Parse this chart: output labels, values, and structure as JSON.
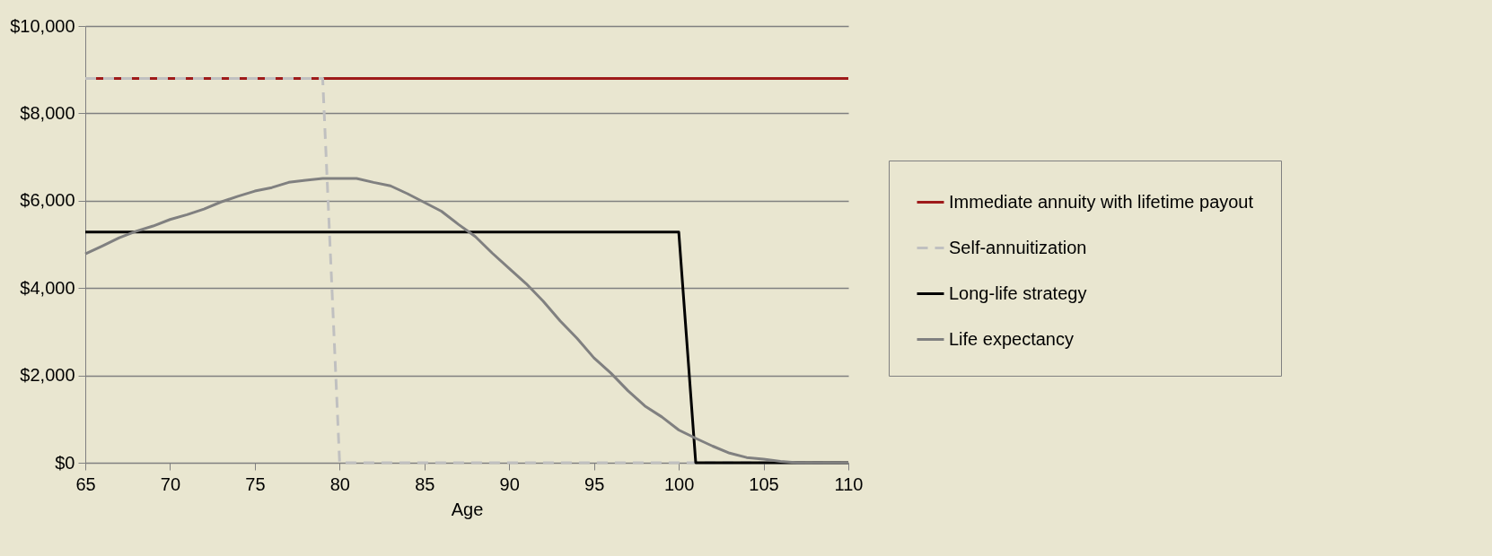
{
  "chart_data": {
    "type": "line",
    "xlabel": "Age",
    "xlim": [
      65,
      110
    ],
    "xticks": [
      65,
      70,
      75,
      80,
      85,
      90,
      95,
      100,
      105,
      110
    ],
    "ylim": [
      0,
      10000
    ],
    "yticks": [
      {
        "value": 0,
        "label": "$0"
      },
      {
        "value": 2000,
        "label": "$2,000"
      },
      {
        "value": 4000,
        "label": "$4,000"
      },
      {
        "value": 6000,
        "label": "$6,000"
      },
      {
        "value": 8000,
        "label": "$8,000"
      },
      {
        "value": 10000,
        "label": "$10,000"
      }
    ],
    "grid": "y",
    "legend": "right",
    "marker": "none",
    "series": [
      {
        "name": "Immediate annuity with lifetime payout",
        "color": "#9e1a1a",
        "line_style": "solid",
        "x": [
          65,
          110
        ],
        "values": [
          8800,
          8800
        ]
      },
      {
        "name": "Self-annuitization",
        "color": "#c0c0c0",
        "line_style": "dashed",
        "x": [
          65,
          79,
          80,
          110
        ],
        "values": [
          8800,
          8800,
          0,
          0
        ]
      },
      {
        "name": "Long-life strategy",
        "color": "#000000",
        "line_style": "solid",
        "x": [
          65,
          100,
          101,
          110
        ],
        "values": [
          5280,
          5280,
          0,
          0
        ]
      },
      {
        "name": "Life expectancy",
        "color": "#808080",
        "line_style": "solid",
        "x": [
          65,
          66,
          67,
          68,
          69,
          70,
          71,
          72,
          73,
          74,
          75,
          76,
          77,
          78,
          79,
          80,
          81,
          82,
          83,
          84,
          85,
          86,
          87,
          88,
          89,
          90,
          91,
          92,
          93,
          94,
          95,
          96,
          97,
          98,
          99,
          100,
          101,
          102,
          103,
          104,
          105,
          106,
          107,
          108,
          109,
          110
        ],
        "values": [
          4780,
          4960,
          5150,
          5300,
          5420,
          5570,
          5680,
          5810,
          5970,
          6100,
          6220,
          6300,
          6420,
          6470,
          6510,
          6510,
          6510,
          6420,
          6340,
          6160,
          5960,
          5760,
          5460,
          5180,
          4800,
          4450,
          4100,
          3700,
          3250,
          2850,
          2400,
          2050,
          1650,
          1300,
          1050,
          750,
          560,
          380,
          220,
          120,
          80,
          30,
          0,
          0,
          0,
          0
        ]
      }
    ]
  }
}
